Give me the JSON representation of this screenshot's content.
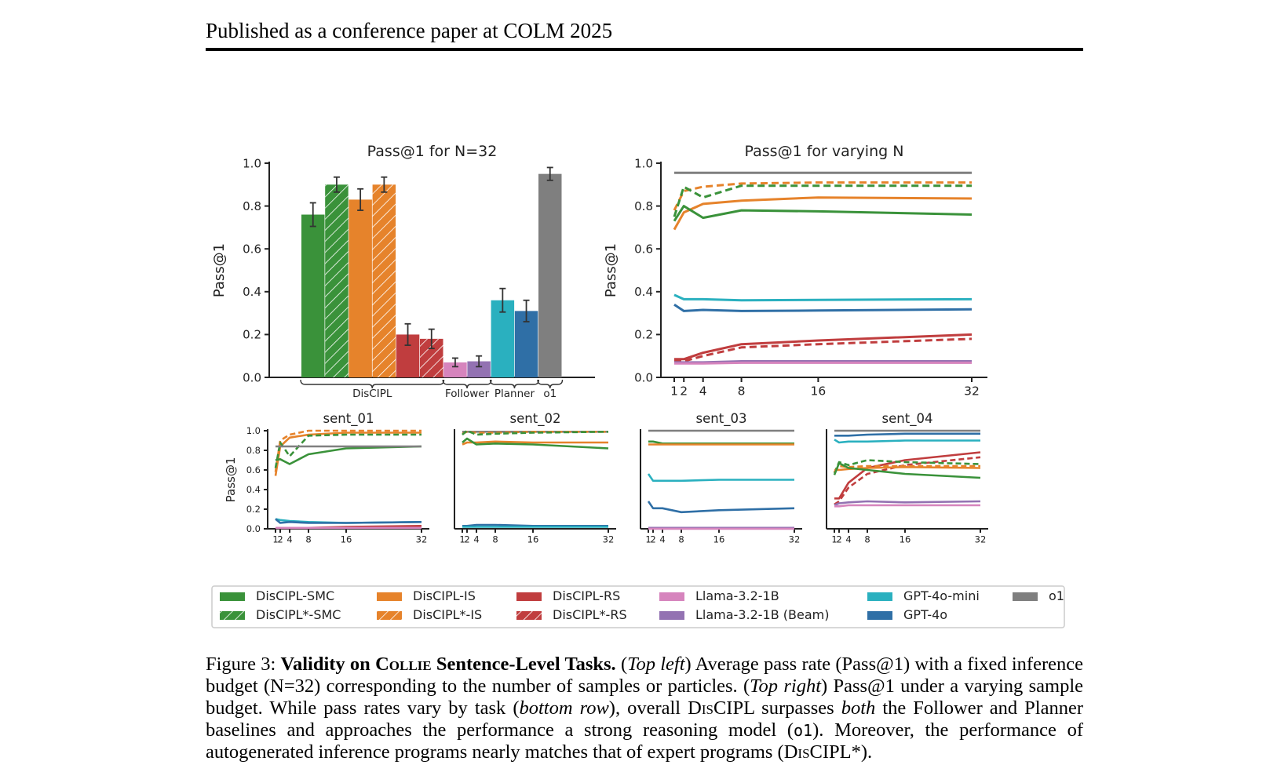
{
  "header": {
    "title": "Published as a conference paper at COLM 2025"
  },
  "colors": {
    "DisCIPL-SMC": "#3a923a",
    "DisCIPL-IS": "#e6832b",
    "DisCIPL-RS": "#c03d3e",
    "Llama-3.2-1B": "#d684bd",
    "Llama-3.2-1B (Beam)": "#9372b2",
    "GPT-4o-mini": "#2ab0bf",
    "GPT-4o": "#2f6fa6",
    "o1": "#7f7f7f"
  },
  "legend": [
    {
      "label": "DisCIPL-SMC",
      "key": "DisCIPL-SMC",
      "hatch": false
    },
    {
      "label": "DisCIPL*-SMC",
      "key": "DisCIPL-SMC",
      "hatch": true
    },
    {
      "label": "DisCIPL-IS",
      "key": "DisCIPL-IS",
      "hatch": false
    },
    {
      "label": "DisCIPL*-IS",
      "key": "DisCIPL-IS",
      "hatch": true
    },
    {
      "label": "DisCIPL-RS",
      "key": "DisCIPL-RS",
      "hatch": false
    },
    {
      "label": "DisCIPL*-RS",
      "key": "DisCIPL-RS",
      "hatch": true
    },
    {
      "label": "Llama-3.2-1B",
      "key": "Llama-3.2-1B",
      "hatch": false
    },
    {
      "label": "Llama-3.2-1B (Beam)",
      "key": "Llama-3.2-1B (Beam)",
      "hatch": false
    },
    {
      "label": "GPT-4o-mini",
      "key": "GPT-4o-mini",
      "hatch": false
    },
    {
      "label": "GPT-4o",
      "key": "GPT-4o",
      "hatch": false
    },
    {
      "label": "o1",
      "key": "o1",
      "hatch": false
    }
  ],
  "chart_data": [
    {
      "type": "bar",
      "title": "Pass@1 for N=32",
      "ylabel": "Pass@1",
      "ylim": [
        0,
        1.0
      ],
      "yticks": [
        "0.0",
        "0.2",
        "0.4",
        "0.6",
        "0.8",
        "1.0"
      ],
      "groups": [
        {
          "label": "DisCIPL",
          "bars": [
            0,
            1,
            2,
            3,
            4,
            5
          ]
        },
        {
          "label": "Follower",
          "bars": [
            6,
            7
          ]
        },
        {
          "label": "Planner",
          "bars": [
            8,
            9
          ]
        },
        {
          "label": "o1",
          "bars": [
            10
          ]
        }
      ],
      "bars": [
        {
          "series": "DisCIPL-SMC",
          "key": "DisCIPL-SMC",
          "hatch": false,
          "value": 0.76,
          "err": 0.055
        },
        {
          "series": "DisCIPL*-SMC",
          "key": "DisCIPL-SMC",
          "hatch": true,
          "value": 0.9,
          "err": 0.035
        },
        {
          "series": "DisCIPL-IS",
          "key": "DisCIPL-IS",
          "hatch": false,
          "value": 0.83,
          "err": 0.05
        },
        {
          "series": "DisCIPL*-IS",
          "key": "DisCIPL-IS",
          "hatch": true,
          "value": 0.9,
          "err": 0.035
        },
        {
          "series": "DisCIPL-RS",
          "key": "DisCIPL-RS",
          "hatch": false,
          "value": 0.2,
          "err": 0.05
        },
        {
          "series": "DisCIPL*-RS",
          "key": "DisCIPL-RS",
          "hatch": true,
          "value": 0.18,
          "err": 0.045
        },
        {
          "series": "Llama-3.2-1B",
          "key": "Llama-3.2-1B",
          "hatch": false,
          "value": 0.07,
          "err": 0.02
        },
        {
          "series": "Llama-3.2-1B (Beam)",
          "key": "Llama-3.2-1B (Beam)",
          "hatch": false,
          "value": 0.075,
          "err": 0.025
        },
        {
          "series": "GPT-4o-mini",
          "key": "GPT-4o-mini",
          "hatch": false,
          "value": 0.36,
          "err": 0.055
        },
        {
          "series": "GPT-4o",
          "key": "GPT-4o",
          "hatch": false,
          "value": 0.31,
          "err": 0.05
        },
        {
          "series": "o1",
          "key": "o1",
          "hatch": false,
          "value": 0.95,
          "err": 0.03
        }
      ]
    },
    {
      "type": "line",
      "title": "Pass@1 for varying N",
      "ylabel": "Pass@1",
      "ylim": [
        0,
        1.0
      ],
      "yticks": [
        "0.0",
        "0.2",
        "0.4",
        "0.6",
        "0.8",
        "1.0"
      ],
      "x": [
        1,
        2,
        4,
        8,
        16,
        32
      ],
      "xticks": [
        "1",
        "2",
        "4",
        "8",
        "16",
        "32"
      ],
      "series": [
        {
          "name": "o1",
          "key": "o1",
          "dash": false,
          "values": [
            0.955,
            0.955,
            0.955,
            0.955,
            0.955,
            0.955
          ]
        },
        {
          "name": "DisCIPL*-IS",
          "key": "DisCIPL-IS",
          "dash": true,
          "values": [
            0.78,
            0.87,
            0.89,
            0.905,
            0.91,
            0.91
          ]
        },
        {
          "name": "DisCIPL*-SMC",
          "key": "DisCIPL-SMC",
          "dash": true,
          "values": [
            0.75,
            0.89,
            0.84,
            0.895,
            0.895,
            0.895
          ]
        },
        {
          "name": "DisCIPL-IS",
          "key": "DisCIPL-IS",
          "dash": false,
          "values": [
            0.69,
            0.77,
            0.81,
            0.825,
            0.84,
            0.835
          ]
        },
        {
          "name": "DisCIPL-SMC",
          "key": "DisCIPL-SMC",
          "dash": false,
          "values": [
            0.73,
            0.8,
            0.745,
            0.78,
            0.775,
            0.76
          ]
        },
        {
          "name": "GPT-4o-mini",
          "key": "GPT-4o-mini",
          "dash": false,
          "values": [
            0.385,
            0.365,
            0.365,
            0.36,
            0.362,
            0.365
          ]
        },
        {
          "name": "GPT-4o",
          "key": "GPT-4o",
          "dash": false,
          "values": [
            0.34,
            0.31,
            0.315,
            0.31,
            0.312,
            0.318
          ]
        },
        {
          "name": "DisCIPL-RS",
          "key": "DisCIPL-RS",
          "dash": false,
          "values": [
            0.085,
            0.085,
            0.115,
            0.155,
            0.172,
            0.2
          ]
        },
        {
          "name": "DisCIPL*-RS",
          "key": "DisCIPL-RS",
          "dash": true,
          "values": [
            0.075,
            0.075,
            0.1,
            0.14,
            0.155,
            0.18
          ]
        },
        {
          "name": "Llama-3.2-1B (Beam)",
          "key": "Llama-3.2-1B (Beam)",
          "dash": false,
          "values": [
            0.07,
            0.07,
            0.07,
            0.075,
            0.075,
            0.075
          ]
        },
        {
          "name": "Llama-3.2-1B",
          "key": "Llama-3.2-1B",
          "dash": false,
          "values": [
            0.065,
            0.065,
            0.065,
            0.068,
            0.068,
            0.068
          ]
        }
      ]
    },
    {
      "type": "line",
      "title": "sent_01",
      "ylabel": "Pass@1",
      "ylim": [
        0,
        1.0
      ],
      "yticks": [
        "0.0",
        "0.2",
        "0.4",
        "0.6",
        "0.8",
        "1.0"
      ],
      "x": [
        1,
        2,
        4,
        8,
        16,
        32
      ],
      "xticks": [
        "1",
        "2",
        "4",
        "8",
        "16",
        "32"
      ],
      "series": [
        {
          "name": "DisCIPL*-IS",
          "key": "DisCIPL-IS",
          "dash": true,
          "values": [
            0.58,
            0.9,
            0.96,
            1.0,
            1.0,
            1.0
          ]
        },
        {
          "name": "DisCIPL-IS",
          "key": "DisCIPL-IS",
          "dash": false,
          "values": [
            0.54,
            0.84,
            0.93,
            0.96,
            0.98,
            0.98
          ]
        },
        {
          "name": "DisCIPL*-SMC",
          "key": "DisCIPL-SMC",
          "dash": true,
          "values": [
            0.62,
            0.88,
            0.74,
            0.95,
            0.96,
            0.96
          ]
        },
        {
          "name": "DisCIPL-SMC",
          "key": "DisCIPL-SMC",
          "dash": false,
          "values": [
            0.7,
            0.71,
            0.66,
            0.76,
            0.82,
            0.84
          ]
        },
        {
          "name": "o1",
          "key": "o1",
          "dash": false,
          "values": [
            0.84,
            0.84,
            0.84,
            0.84,
            0.84,
            0.84
          ]
        },
        {
          "name": "GPT-4o-mini",
          "key": "GPT-4o-mini",
          "dash": false,
          "values": [
            0.1,
            0.09,
            0.08,
            0.07,
            0.06,
            0.07
          ]
        },
        {
          "name": "GPT-4o",
          "key": "GPT-4o",
          "dash": false,
          "values": [
            0.1,
            0.06,
            0.07,
            0.06,
            0.06,
            0.07
          ]
        },
        {
          "name": "DisCIPL-RS",
          "key": "DisCIPL-RS",
          "dash": false,
          "values": [
            0.01,
            0.01,
            0.01,
            0.01,
            0.02,
            0.03
          ]
        },
        {
          "name": "Llama-3.2-1B",
          "key": "Llama-3.2-1B",
          "dash": false,
          "values": [
            0.01,
            0.01,
            0.01,
            0.01,
            0.01,
            0.01
          ]
        }
      ]
    },
    {
      "type": "line",
      "title": "sent_02",
      "ylim": [
        0,
        1.0
      ],
      "x": [
        1,
        2,
        4,
        8,
        16,
        32
      ],
      "xticks": [
        "1",
        "2",
        "4",
        "8",
        "16",
        "32"
      ],
      "series": [
        {
          "name": "o1",
          "key": "o1",
          "dash": false,
          "values": [
            0.99,
            0.99,
            0.99,
            0.99,
            0.99,
            0.99
          ]
        },
        {
          "name": "DisCIPL*-IS",
          "key": "DisCIPL-IS",
          "dash": true,
          "values": [
            0.97,
            0.99,
            0.98,
            0.98,
            0.99,
            0.99
          ]
        },
        {
          "name": "DisCIPL*-SMC",
          "key": "DisCIPL-SMC",
          "dash": true,
          "values": [
            0.96,
            1.0,
            0.96,
            0.97,
            0.98,
            0.99
          ]
        },
        {
          "name": "DisCIPL-IS",
          "key": "DisCIPL-IS",
          "dash": false,
          "values": [
            0.86,
            0.88,
            0.88,
            0.89,
            0.88,
            0.88
          ]
        },
        {
          "name": "DisCIPL-SMC",
          "key": "DisCIPL-SMC",
          "dash": false,
          "values": [
            0.88,
            0.92,
            0.86,
            0.87,
            0.86,
            0.82
          ]
        },
        {
          "name": "GPT-4o",
          "key": "GPT-4o",
          "dash": false,
          "values": [
            0.03,
            0.03,
            0.04,
            0.04,
            0.03,
            0.03
          ]
        },
        {
          "name": "GPT-4o-mini",
          "key": "GPT-4o-mini",
          "dash": false,
          "values": [
            0.02,
            0.02,
            0.02,
            0.02,
            0.02,
            0.02
          ]
        }
      ]
    },
    {
      "type": "line",
      "title": "sent_03",
      "ylim": [
        0,
        1.0
      ],
      "x": [
        1,
        2,
        4,
        8,
        16,
        32
      ],
      "xticks": [
        "1",
        "2",
        "4",
        "8",
        "16",
        "32"
      ],
      "series": [
        {
          "name": "o1",
          "key": "o1",
          "dash": false,
          "values": [
            1.0,
            1.0,
            1.0,
            1.0,
            1.0,
            1.0
          ]
        },
        {
          "name": "DisCIPL-SMC",
          "key": "DisCIPL-SMC",
          "dash": false,
          "values": [
            0.89,
            0.89,
            0.87,
            0.87,
            0.87,
            0.87
          ]
        },
        {
          "name": "DisCIPL-IS",
          "key": "DisCIPL-IS",
          "dash": false,
          "values": [
            0.86,
            0.86,
            0.86,
            0.86,
            0.86,
            0.86
          ]
        },
        {
          "name": "GPT-4o-mini",
          "key": "GPT-4o-mini",
          "dash": false,
          "values": [
            0.56,
            0.49,
            0.49,
            0.49,
            0.5,
            0.5
          ]
        },
        {
          "name": "GPT-4o",
          "key": "GPT-4o",
          "dash": false,
          "values": [
            0.28,
            0.21,
            0.21,
            0.17,
            0.19,
            0.21
          ]
        },
        {
          "name": "Llama-3.2-1B (Beam)",
          "key": "Llama-3.2-1B (Beam)",
          "dash": false,
          "values": [
            0.01,
            0.01,
            0.01,
            0.01,
            0.01,
            0.01
          ]
        },
        {
          "name": "Llama-3.2-1B",
          "key": "Llama-3.2-1B",
          "dash": false,
          "values": [
            0.0,
            0.0,
            0.0,
            0.0,
            0.0,
            0.0
          ]
        }
      ]
    },
    {
      "type": "line",
      "title": "sent_04",
      "ylim": [
        0,
        1.0
      ],
      "x": [
        1,
        2,
        4,
        8,
        16,
        32
      ],
      "xticks": [
        "1",
        "2",
        "4",
        "8",
        "16",
        "32"
      ],
      "series": [
        {
          "name": "o1",
          "key": "o1",
          "dash": false,
          "values": [
            1.0,
            1.0,
            1.0,
            1.0,
            1.0,
            1.0
          ]
        },
        {
          "name": "GPT-4o",
          "key": "GPT-4o",
          "dash": false,
          "values": [
            0.95,
            0.95,
            0.95,
            0.96,
            0.97,
            0.97
          ]
        },
        {
          "name": "GPT-4o-mini",
          "key": "GPT-4o-mini",
          "dash": false,
          "values": [
            0.91,
            0.88,
            0.89,
            0.89,
            0.9,
            0.9
          ]
        },
        {
          "name": "DisCIPL-RS",
          "key": "DisCIPL-RS",
          "dash": false,
          "values": [
            0.31,
            0.31,
            0.47,
            0.62,
            0.7,
            0.78
          ]
        },
        {
          "name": "DisCIPL*-RS",
          "key": "DisCIPL-RS",
          "dash": true,
          "values": [
            0.25,
            0.28,
            0.42,
            0.56,
            0.65,
            0.73
          ]
        },
        {
          "name": "DisCIPL*-SMC",
          "key": "DisCIPL-SMC",
          "dash": true,
          "values": [
            0.57,
            0.68,
            0.65,
            0.7,
            0.68,
            0.66
          ]
        },
        {
          "name": "DisCIPL*-IS",
          "key": "DisCIPL-IS",
          "dash": true,
          "values": [
            0.58,
            0.64,
            0.63,
            0.64,
            0.64,
            0.64
          ]
        },
        {
          "name": "DisCIPL-IS",
          "key": "DisCIPL-IS",
          "dash": false,
          "values": [
            0.6,
            0.6,
            0.61,
            0.62,
            0.63,
            0.62
          ]
        },
        {
          "name": "DisCIPL-SMC",
          "key": "DisCIPL-SMC",
          "dash": false,
          "values": [
            0.55,
            0.67,
            0.62,
            0.6,
            0.56,
            0.52
          ]
        },
        {
          "name": "Llama-3.2-1B (Beam)",
          "key": "Llama-3.2-1B (Beam)",
          "dash": false,
          "values": [
            0.24,
            0.26,
            0.27,
            0.28,
            0.27,
            0.28
          ]
        },
        {
          "name": "Llama-3.2-1B",
          "key": "Llama-3.2-1B",
          "dash": false,
          "values": [
            0.23,
            0.23,
            0.24,
            0.24,
            0.24,
            0.24
          ]
        }
      ]
    }
  ],
  "caption": {
    "label": "Figure 3:",
    "bold_a": "Validity on ",
    "bold_sc": "Collie",
    "bold_b": " Sentence-Level Tasks.",
    "p1": " (",
    "i1": "Top left",
    "p2": ") Average pass rate (Pass@1) with a fixed inference budget (N=32) corresponding to the number of samples or particles. (",
    "i2": "Top right",
    "p3": ") Pass@1 under a varying sample budget. While pass rates vary by task (",
    "i3": "bottom row",
    "p4": "), overall D",
    "sc1": "is",
    "p5": "CIPL surpasses ",
    "i4": "both",
    "p6": " the Follower and Planner baselines and approaches the performance a strong reasoning model (",
    "mono1": "o1",
    "p7": "). Moreover, the performance of autogenerated inference programs nearly matches that of expert programs (D",
    "sc2": "is",
    "p8": "CIPL*)."
  }
}
